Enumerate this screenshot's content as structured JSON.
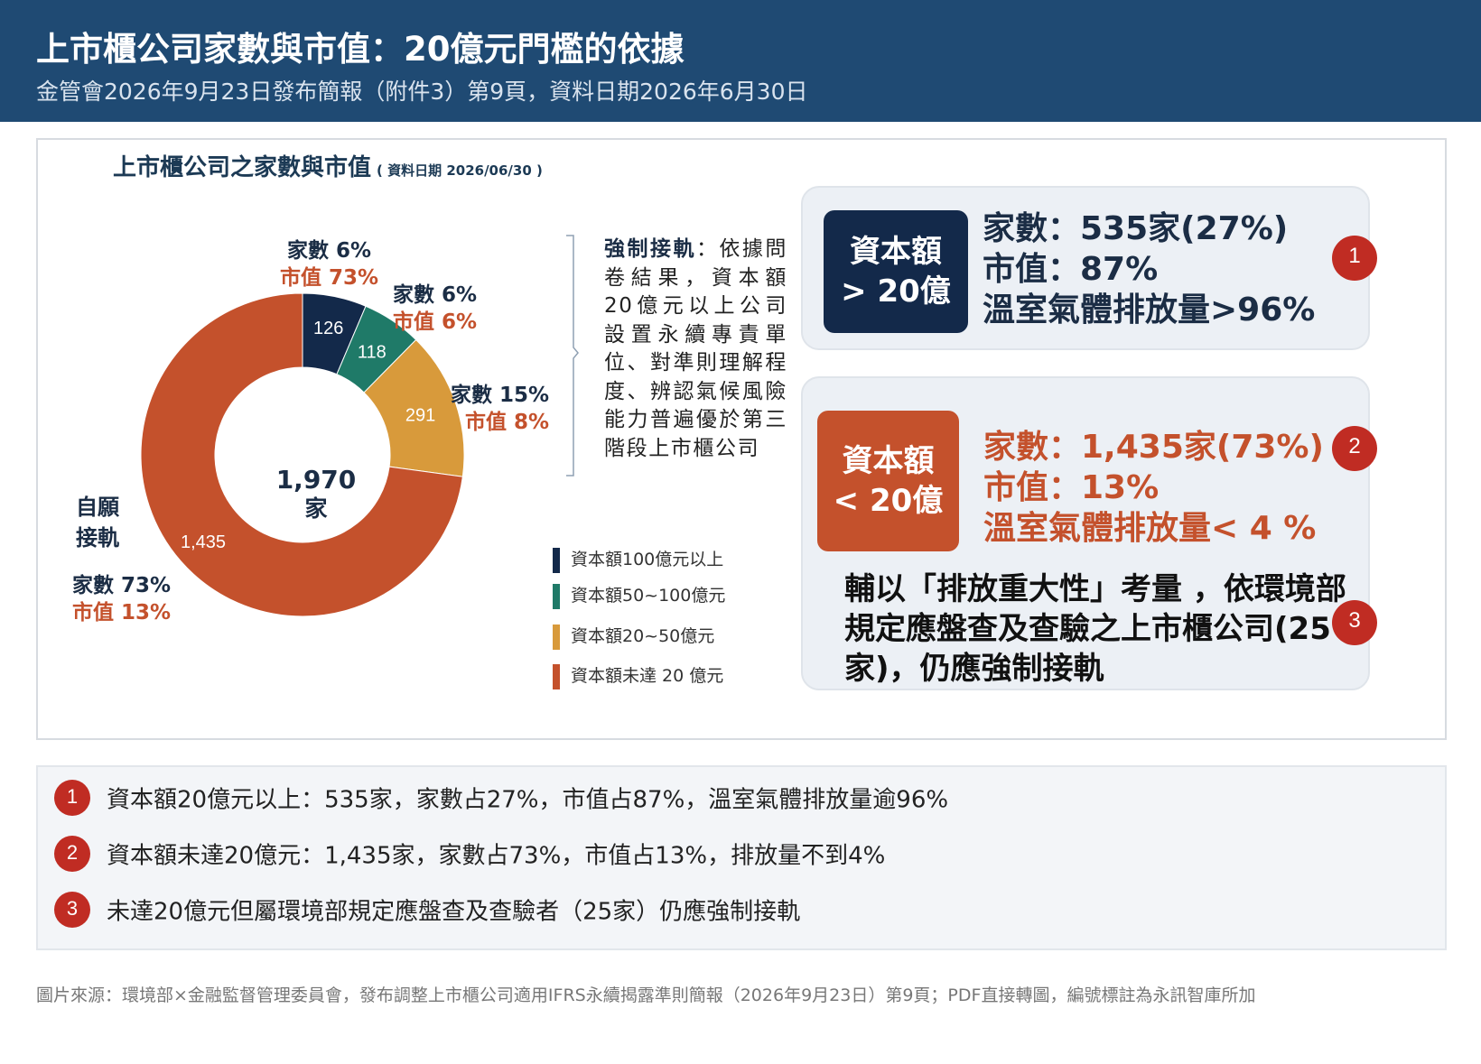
{
  "header": {
    "title": "上市櫃公司家數與市值：20億元門檻的依據",
    "subtitle": "金管會2026年9月23日發布簡報（附件3）第9頁，資料日期2026年6月30日"
  },
  "chart_heading": {
    "title": "上市櫃公司之家數與市值",
    "date_note": "( 資料日期 2026/06/30 )"
  },
  "chart_data": {
    "type": "pie",
    "donut": true,
    "total_label": "1,970",
    "total_unit": "家",
    "series": [
      {
        "name": "資本額100億元以上",
        "value": 126,
        "value_label": "126",
        "count_pct": "家數 6%",
        "mktcap_pct": "市值 73%",
        "color": "#13294a"
      },
      {
        "name": "資本額50~100億元",
        "value": 118,
        "value_label": "118",
        "count_pct": "家數 6%",
        "mktcap_pct": "市值 6%",
        "color": "#1f7a68"
      },
      {
        "name": "資本額20~50億元",
        "value": 291,
        "value_label": "291",
        "count_pct": "家數 15%",
        "mktcap_pct": "市值 8%",
        "color": "#d89a3b"
      },
      {
        "name": "資本額未達 20 億元",
        "value": 1435,
        "value_label": "1,435",
        "count_pct": "家數 73%",
        "mktcap_pct": "市值 13%",
        "color": "#c4512c"
      }
    ],
    "voluntary_label": "自願接軌"
  },
  "mandatory_note": {
    "bold": "強制接軌",
    "text": "：依據問卷結果，資本額20億元以上公司設置永續專責單位、對準則理解程度、辨認氣候風險能力普遍優於第三階段上市櫃公司"
  },
  "box_above": {
    "tag": [
      "資本額",
      "> 20億"
    ],
    "stats": [
      "家數：535家(27%)",
      "市值：87%",
      "溫室氣體排放量>96%"
    ],
    "number": "1"
  },
  "box_below": {
    "tag": [
      "資本額",
      "< 20億"
    ],
    "stats": [
      "家數：1,435家(73%)",
      "市值：13%",
      "溫室氣體排放量< 4 %"
    ],
    "number": "2",
    "note": "輔以「排放重大性」考量 ，依環境部規定應盤查及查驗之上市櫃公司(25家)，仍應強制接軌",
    "note_number": "3"
  },
  "summary": [
    {
      "num": "1",
      "text": "資本額20億元以上：535家，家數占27%，市值占87%，溫室氣體排放量逾96%"
    },
    {
      "num": "2",
      "text": "資本額未達20億元：1,435家，家數占73%，市值占13%，排放量不到4%"
    },
    {
      "num": "3",
      "text": "未達20億元但屬環境部規定應盤查及查驗者（25家）仍應強制接軌"
    }
  ],
  "source": "圖片來源：環境部×金融監督管理委員會，發布調整上市櫃公司適用IFRS永續揭露準則簡報（2026年9月23日）第9頁；PDF直接轉圖，編號標註為永訊智庫所加"
}
